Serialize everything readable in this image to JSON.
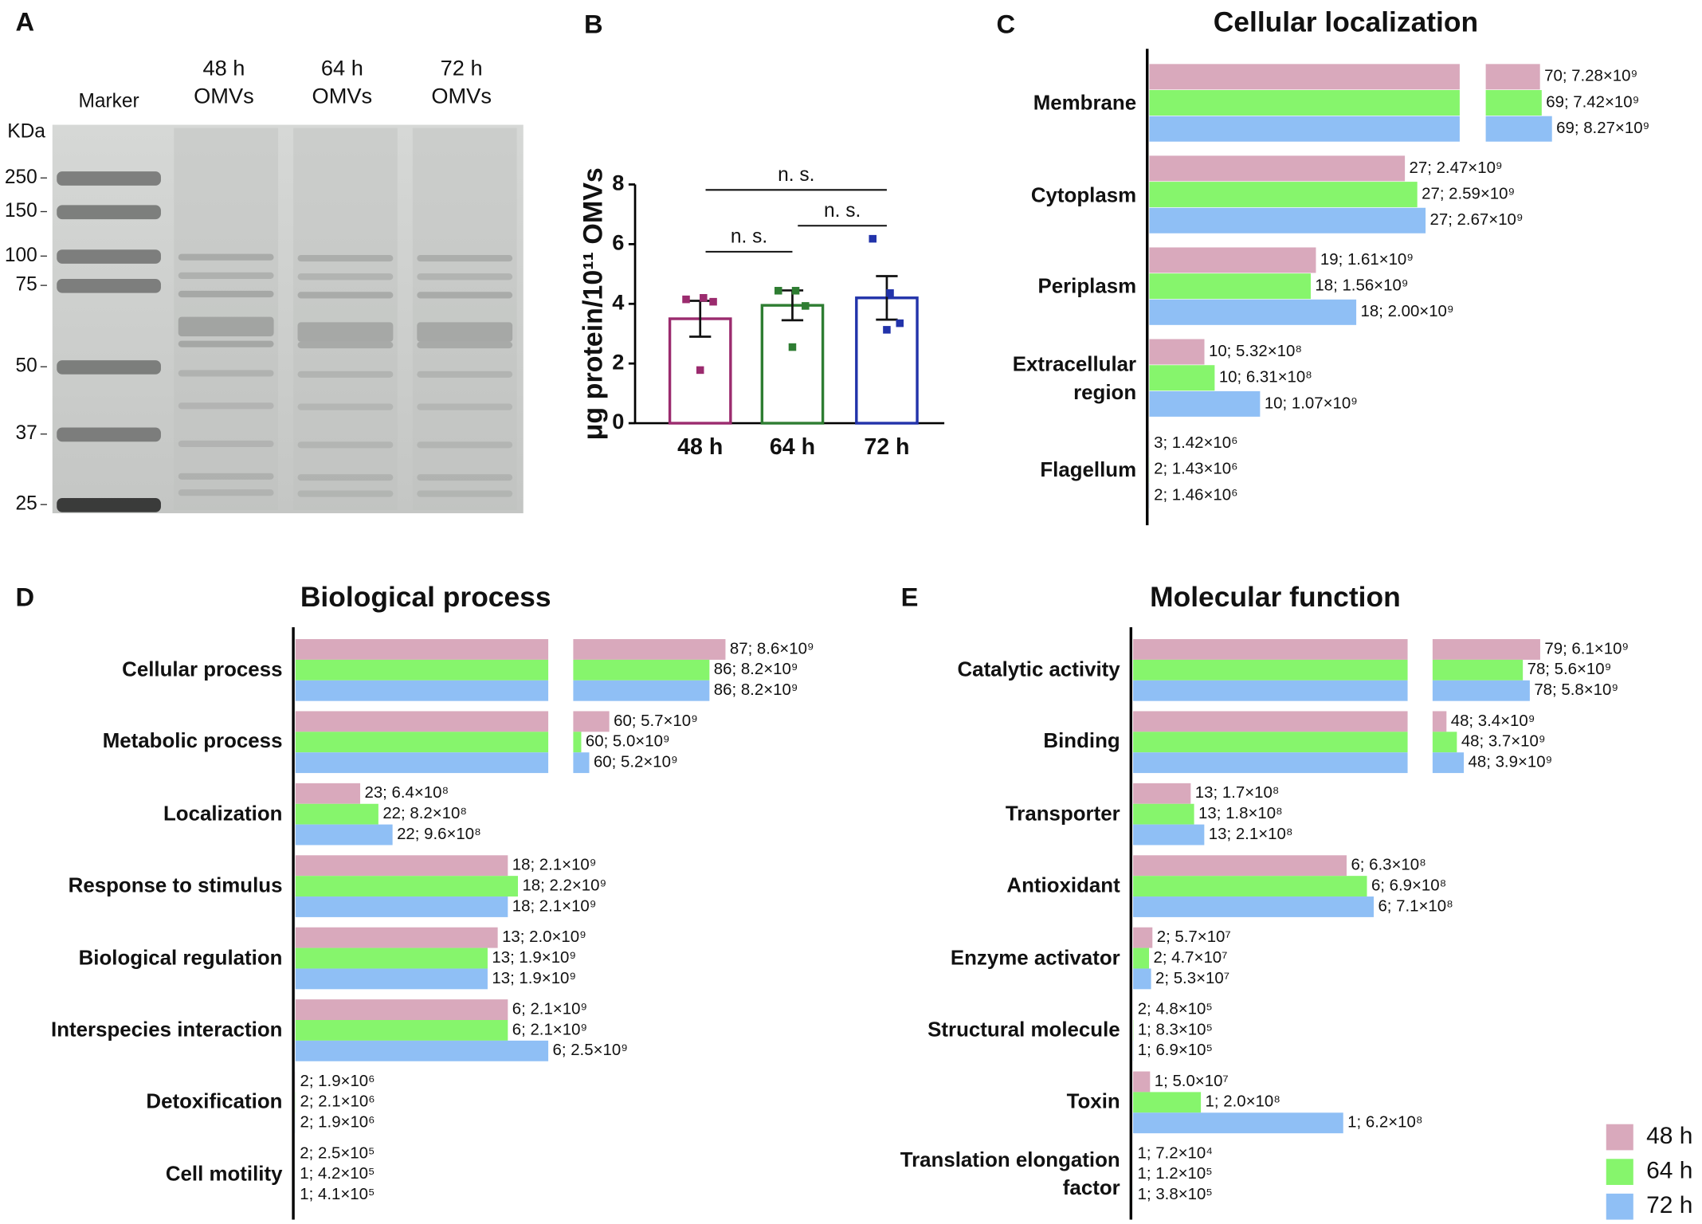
{
  "gel": {
    "panel": "A",
    "unit": "KDa",
    "lanes": [
      "Marker",
      "48 h",
      "64 h",
      "72 h"
    ],
    "lane_sub": "OMVs",
    "markers": [
      "250",
      "150",
      "100",
      "75",
      "50",
      "37",
      "25"
    ]
  },
  "chart_data": [
    {
      "type": "bar",
      "panel": "B",
      "ylabel": "μg protein/10¹¹ OMVs",
      "categories": [
        "48 h",
        "64 h",
        "72 h"
      ],
      "values": [
        3.5,
        3.95,
        4.2
      ],
      "errors": [
        0.6,
        0.5,
        0.73
      ],
      "points": [
        [
          4.15,
          4.2,
          4.07,
          1.78
        ],
        [
          4.44,
          4.44,
          3.93,
          2.55
        ],
        [
          6.18,
          4.36,
          3.35,
          3.13
        ]
      ],
      "colors": [
        "#9b2b6e",
        "#2e7d32",
        "#2233aa"
      ],
      "ylim": [
        0,
        8
      ],
      "yticks": [
        0,
        2,
        4,
        6,
        8
      ],
      "annotations": [
        "n. s.",
        "n. s.",
        "n. s."
      ]
    },
    {
      "type": "hbar",
      "panel": "C",
      "title": "Cellular localization",
      "categories": [
        "Membrane",
        "Cytoplasm",
        "Periplasm",
        "Extracellular region",
        "Flagellum"
      ],
      "x_segments": [
        [
          0,
          3000000000.0
        ],
        [
          2800000000.0,
          20000000000.0
        ]
      ],
      "series": [
        {
          "color": "#d9a9bc",
          "values": [
            7280000000.0,
            2470000000.0,
            1610000000.0,
            532000000.0,
            1420000.0
          ],
          "value_labels": [
            "70; 7.28×10⁹",
            "27; 2.47×10⁹",
            "19; 1.61×10⁹",
            "10; 5.32×10⁸",
            "3; 1.42×10⁶"
          ]
        },
        {
          "color": "#86f56c",
          "values": [
            7420000000.0,
            2590000000.0,
            1560000000.0,
            631000000.0,
            1430000.0
          ],
          "value_labels": [
            "69; 7.42×10⁹",
            "27; 2.59×10⁹",
            "18; 1.56×10⁹",
            "10; 6.31×10⁸",
            "2; 1.43×10⁶"
          ]
        },
        {
          "color": "#8fbff5",
          "values": [
            8270000000.0,
            2670000000.0,
            2000000000.0,
            1070000000.0,
            1460000.0
          ],
          "value_labels": [
            "69; 8.27×10⁹",
            "27; 2.67×10⁹",
            "18; 2.00×10⁹",
            "10; 1.07×10⁹",
            "2; 1.46×10⁶"
          ]
        }
      ]
    },
    {
      "type": "hbar",
      "panel": "D",
      "title": "Biological process",
      "categories": [
        "Cellular process",
        "Metabolic process",
        "Localization",
        "Response to stimulus",
        "Biological regulation",
        "Interspecies interaction",
        "Detoxification",
        "Cell motility"
      ],
      "x_segments": [
        [
          0,
          2500000000.0
        ],
        [
          4800000000.0,
          10000000000.0
        ]
      ],
      "series": [
        {
          "color": "#d9a9bc",
          "values": [
            8600000000.0,
            5700000000.0,
            640000000.0,
            2100000000.0,
            2000000000.0,
            2100000000.0,
            1900000.0,
            250000.0
          ],
          "value_labels": [
            "87; 8.6×10⁹",
            "60; 5.7×10⁹",
            "23; 6.4×10⁸",
            "18; 2.1×10⁹",
            "13; 2.0×10⁹",
            "6; 2.1×10⁹",
            "2; 1.9×10⁶",
            "2; 2.5×10⁵"
          ]
        },
        {
          "color": "#86f56c",
          "values": [
            8200000000.0,
            5000000000.0,
            820000000.0,
            2200000000.0,
            1900000000.0,
            2100000000.0,
            2100000.0,
            420000.0
          ],
          "value_labels": [
            "86; 8.2×10⁹",
            "60; 5.0×10⁹",
            "22; 8.2×10⁸",
            "18; 2.2×10⁹",
            "13; 1.9×10⁹",
            "6; 2.1×10⁹",
            "2; 2.1×10⁶",
            "1; 4.2×10⁵"
          ]
        },
        {
          "color": "#8fbff5",
          "values": [
            8200000000.0,
            5200000000.0,
            960000000.0,
            2100000000.0,
            1900000000.0,
            2500000000.0,
            1900000.0,
            410000.0
          ],
          "value_labels": [
            "86; 8.2×10⁹",
            "60; 5.2×10⁹",
            "22; 9.6×10⁸",
            "18; 2.1×10⁹",
            "13; 1.9×10⁹",
            "6; 2.5×10⁹",
            "2; 1.9×10⁶",
            "1; 4.1×10⁵"
          ]
        }
      ]
    },
    {
      "type": "hbar",
      "panel": "E",
      "title": "Molecular function",
      "legend": "lower right",
      "categories": [
        "Catalytic activity",
        "Binding",
        "Transporter",
        "Antioxidant",
        "Enzyme activator",
        "Structural molecule",
        "Toxin",
        "Translation elongation factor"
      ],
      "x_segments": [
        [
          0,
          810000000.0
        ],
        [
          3000000000.0,
          9000000000.0
        ]
      ],
      "series": [
        {
          "name": "48 h",
          "color": "#d9a9bc",
          "values": [
            6100000000.0,
            3400000000.0,
            170000000.0,
            630000000.0,
            57000000.0,
            480000.0,
            50000000.0,
            72000.0
          ],
          "value_labels": [
            "79; 6.1×10⁹",
            "48; 3.4×10⁹",
            "13; 1.7×10⁸",
            "6; 6.3×10⁸",
            "2; 5.7×10⁷",
            "2; 4.8×10⁵",
            "1; 5.0×10⁷",
            "1; 7.2×10⁴"
          ]
        },
        {
          "name": "64 h",
          "color": "#86f56c",
          "values": [
            5600000000.0,
            3700000000.0,
            180000000.0,
            690000000.0,
            47000000.0,
            830000.0,
            200000000.0,
            120000.0
          ],
          "value_labels": [
            "78; 5.6×10⁹",
            "48; 3.7×10⁹",
            "13; 1.8×10⁸",
            "6; 6.9×10⁸",
            "2; 4.7×10⁷",
            "1; 8.3×10⁵",
            "1; 2.0×10⁸",
            "1; 1.2×10⁵"
          ]
        },
        {
          "name": "72 h",
          "color": "#8fbff5",
          "values": [
            5800000000.0,
            3900000000.0,
            210000000.0,
            710000000.0,
            53000000.0,
            690000.0,
            620000000.0,
            380000.0
          ],
          "value_labels": [
            "78; 5.8×10⁹",
            "48; 3.9×10⁹",
            "13; 2.1×10⁸",
            "6; 7.1×10⁸",
            "2; 5.3×10⁷",
            "1; 6.9×10⁵",
            "1; 6.2×10⁸",
            "1; 3.8×10⁵"
          ]
        }
      ]
    }
  ]
}
